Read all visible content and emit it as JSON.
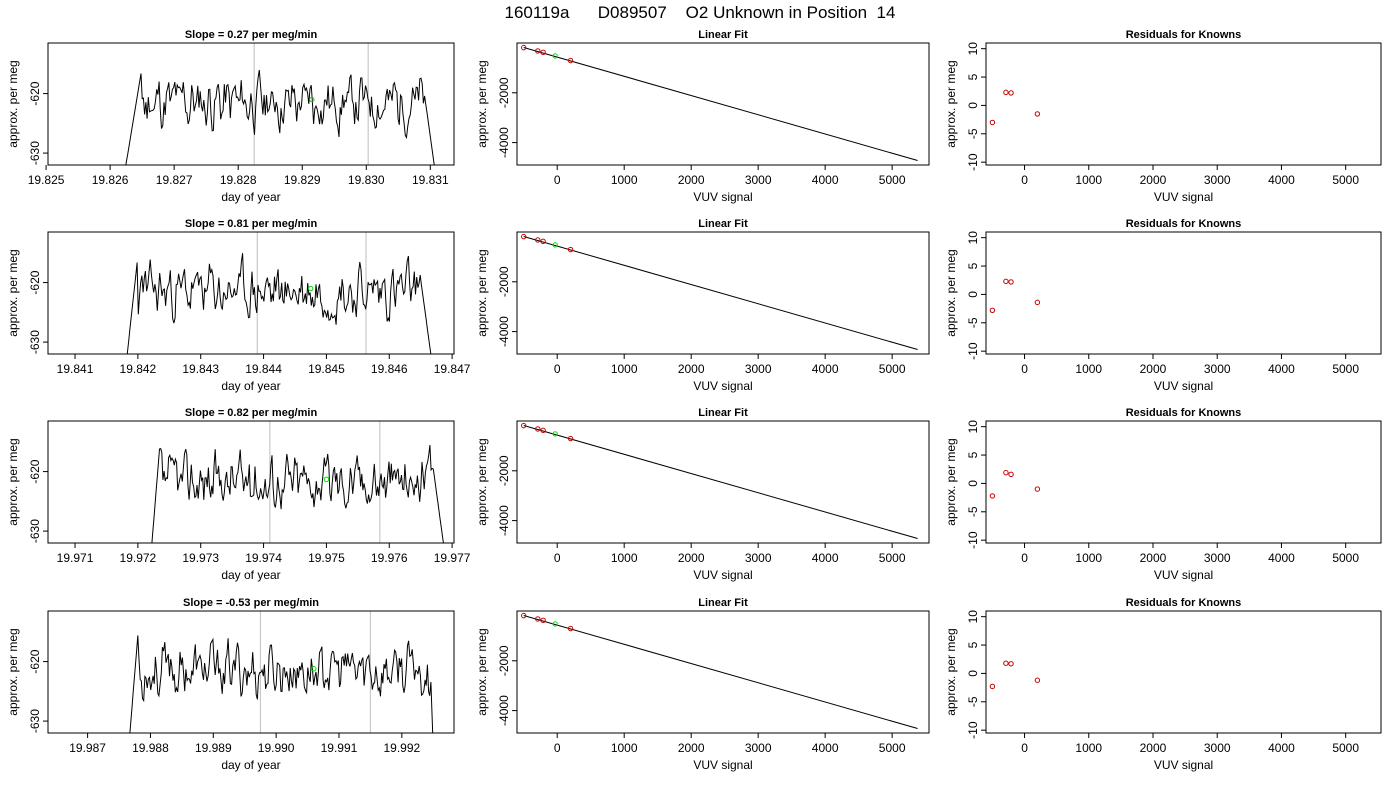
{
  "page_title": "160119a      D089507    O2 Unknown in Position  14",
  "colors": {
    "trace": "#000000",
    "vline": "#c8c8c8",
    "fit_line": "#000000",
    "known": "#cc0000",
    "unknown": "#00dd00"
  },
  "chart_data": [
    {
      "type": "line",
      "row": 1,
      "panel": "time-series",
      "title": "Slope =  0.27  per meg/min",
      "xlabel": "day of year",
      "ylabel": "approx. per meg",
      "xlim": [
        19.82503,
        19.83137
      ],
      "ylim": [
        -632,
        -611.5
      ],
      "xticks": [
        "19.825",
        "19.826",
        "19.827",
        "19.828",
        "19.829",
        "19.830",
        "19.831"
      ],
      "xtick_values": [
        19.825,
        19.826,
        19.827,
        19.828,
        19.829,
        19.83,
        19.831
      ],
      "yticks": [
        -620,
        -630
      ],
      "vlines": [
        19.82825,
        19.83003
      ],
      "unknown_point": [
        19.82915,
        -621
      ],
      "trace": {
        "x_start": 19.8262,
        "x_end": 19.8311,
        "seed": 11,
        "plateau_start": 19.8265,
        "plateau_end": 19.8309,
        "baseline": -621.5
      }
    },
    {
      "type": "scatter",
      "row": 1,
      "panel": "linear-fit",
      "title": "Linear Fit",
      "xlabel": "VUV signal",
      "ylabel": "approx. per meg",
      "xlim": [
        -600,
        5550
      ],
      "ylim": [
        -4900,
        0
      ],
      "xticks": [
        0,
        1000,
        2000,
        3000,
        4000,
        5000
      ],
      "yticks": [
        -2000,
        -4000
      ],
      "known": [
        [
          -500,
          -186
        ],
        [
          -290,
          -320
        ],
        [
          -210,
          -375
        ],
        [
          200,
          -705
        ]
      ],
      "unknown": [
        [
          -30,
          -518
        ]
      ],
      "line": [
        [
          -500,
          -180
        ],
        [
          5380,
          -4720
        ]
      ]
    },
    {
      "type": "scatter",
      "row": 1,
      "panel": "residuals",
      "title": "Residuals for Knowns",
      "xlabel": "VUV signal",
      "ylabel": "approx. per meg",
      "xlim": [
        -600,
        5550
      ],
      "ylim": [
        -10.5,
        11
      ],
      "xticks": [
        0,
        1000,
        2000,
        3000,
        4000,
        5000
      ],
      "yticks": [
        10,
        5,
        0,
        -5,
        -10
      ],
      "known": [
        [
          -500,
          -3.0
        ],
        [
          -290,
          2.3
        ],
        [
          -210,
          2.2
        ],
        [
          200,
          -1.5
        ]
      ]
    },
    {
      "type": "line",
      "row": 2,
      "panel": "time-series",
      "title": "Slope =  0.81  per meg/min",
      "xlabel": "day of year",
      "ylabel": "approx. per meg",
      "xlim": [
        19.84057,
        19.84703
      ],
      "ylim": [
        -632,
        -611.5
      ],
      "xticks": [
        "19.841",
        "19.842",
        "19.843",
        "19.844",
        "19.845",
        "19.846",
        "19.847"
      ],
      "xtick_values": [
        19.841,
        19.842,
        19.843,
        19.844,
        19.845,
        19.846,
        19.847
      ],
      "yticks": [
        -620,
        -630
      ],
      "vlines": [
        19.8439,
        19.84563
      ],
      "unknown_point": [
        19.84475,
        -621
      ],
      "trace": {
        "x_start": 19.8418,
        "x_end": 19.8467,
        "seed": 23,
        "plateau_start": 19.842,
        "plateau_end": 19.8465,
        "baseline": -621.5
      }
    },
    {
      "type": "scatter",
      "row": 2,
      "panel": "linear-fit",
      "title": "Linear Fit",
      "xlabel": "VUV signal",
      "ylabel": "approx. per meg",
      "xlim": [
        -600,
        5550
      ],
      "ylim": [
        -4900,
        0
      ],
      "xticks": [
        0,
        1000,
        2000,
        3000,
        4000,
        5000
      ],
      "yticks": [
        -2000,
        -4000
      ],
      "known": [
        [
          -500,
          -186
        ],
        [
          -290,
          -320
        ],
        [
          -210,
          -375
        ],
        [
          200,
          -705
        ]
      ],
      "unknown": [
        [
          -30,
          -518
        ]
      ],
      "line": [
        [
          -500,
          -180
        ],
        [
          5380,
          -4720
        ]
      ]
    },
    {
      "type": "scatter",
      "row": 2,
      "panel": "residuals",
      "title": "Residuals for Knowns",
      "xlabel": "VUV signal",
      "ylabel": "approx. per meg",
      "xlim": [
        -600,
        5550
      ],
      "ylim": [
        -10.5,
        11
      ],
      "xticks": [
        0,
        1000,
        2000,
        3000,
        4000,
        5000
      ],
      "yticks": [
        10,
        5,
        0,
        -5,
        -10
      ],
      "known": [
        [
          -500,
          -2.8
        ],
        [
          -290,
          2.3
        ],
        [
          -210,
          2.2
        ],
        [
          200,
          -1.4
        ]
      ]
    },
    {
      "type": "line",
      "row": 3,
      "panel": "time-series",
      "title": "Slope =  0.82  per meg/min",
      "xlabel": "day of year",
      "ylabel": "approx. per meg",
      "xlim": [
        19.97057,
        19.97703
      ],
      "ylim": [
        -632,
        -611.5
      ],
      "xticks": [
        "19.971",
        "19.972",
        "19.973",
        "19.974",
        "19.975",
        "19.976",
        "19.977"
      ],
      "xtick_values": [
        19.971,
        19.972,
        19.973,
        19.974,
        19.975,
        19.976,
        19.977
      ],
      "yticks": [
        -620,
        -630
      ],
      "vlines": [
        19.9741,
        19.97585
      ],
      "unknown_point": [
        19.975,
        -621.3
      ],
      "trace": {
        "x_start": 19.9722,
        "x_end": 19.9769,
        "seed": 37,
        "plateau_start": 19.97235,
        "plateau_end": 19.9767,
        "baseline": -621.5
      }
    },
    {
      "type": "scatter",
      "row": 3,
      "panel": "linear-fit",
      "title": "Linear Fit",
      "xlabel": "VUV signal",
      "ylabel": "approx. per meg",
      "xlim": [
        -600,
        5550
      ],
      "ylim": [
        -4900,
        0
      ],
      "xticks": [
        0,
        1000,
        2000,
        3000,
        4000,
        5000
      ],
      "yticks": [
        -2000,
        -4000
      ],
      "known": [
        [
          -500,
          -186
        ],
        [
          -290,
          -320
        ],
        [
          -210,
          -375
        ],
        [
          200,
          -705
        ]
      ],
      "unknown": [
        [
          -30,
          -518
        ]
      ],
      "line": [
        [
          -500,
          -180
        ],
        [
          5380,
          -4720
        ]
      ]
    },
    {
      "type": "scatter",
      "row": 3,
      "panel": "residuals",
      "title": "Residuals for Knowns",
      "xlabel": "VUV signal",
      "ylabel": "approx. per meg",
      "xlim": [
        -600,
        5550
      ],
      "ylim": [
        -10.5,
        11
      ],
      "xticks": [
        0,
        1000,
        2000,
        3000,
        4000,
        5000
      ],
      "yticks": [
        10,
        5,
        0,
        -5,
        -10
      ],
      "known": [
        [
          -500,
          -2.2
        ],
        [
          -290,
          1.9
        ],
        [
          -210,
          1.6
        ],
        [
          200,
          -1.0
        ]
      ]
    },
    {
      "type": "line",
      "row": 4,
      "panel": "time-series",
      "title": "Slope =  -0.53  per meg/min",
      "xlabel": "day of year",
      "ylabel": "approx. per meg",
      "xlim": [
        19.98637,
        19.99283
      ],
      "ylim": [
        -632,
        -611.5
      ],
      "xticks": [
        "19.987",
        "19.988",
        "19.989",
        "19.990",
        "19.991",
        "19.992"
      ],
      "xtick_values": [
        19.987,
        19.988,
        19.989,
        19.99,
        19.991,
        19.992
      ],
      "yticks": [
        -620,
        -630
      ],
      "vlines": [
        19.98975,
        19.9915
      ],
      "unknown_point": [
        19.9906,
        -621.2
      ],
      "trace": {
        "x_start": 19.98765,
        "x_end": 19.9925,
        "seed": 53,
        "plateau_start": 19.9878,
        "plateau_end": 19.99245,
        "baseline": -621.5
      }
    },
    {
      "type": "scatter",
      "row": 4,
      "panel": "linear-fit",
      "title": "Linear Fit",
      "xlabel": "VUV signal",
      "ylabel": "approx. per meg",
      "xlim": [
        -600,
        5550
      ],
      "ylim": [
        -4900,
        0
      ],
      "xticks": [
        0,
        1000,
        2000,
        3000,
        4000,
        5000
      ],
      "yticks": [
        -2000,
        -4000
      ],
      "known": [
        [
          -500,
          -186
        ],
        [
          -290,
          -320
        ],
        [
          -210,
          -375
        ],
        [
          200,
          -705
        ]
      ],
      "unknown": [
        [
          -30,
          -518
        ]
      ],
      "line": [
        [
          -500,
          -180
        ],
        [
          5380,
          -4720
        ]
      ]
    },
    {
      "type": "scatter",
      "row": 4,
      "panel": "residuals",
      "title": "Residuals for Knowns",
      "xlabel": "VUV signal",
      "ylabel": "approx. per meg",
      "xlim": [
        -600,
        5550
      ],
      "ylim": [
        -10.5,
        11
      ],
      "xticks": [
        0,
        1000,
        2000,
        3000,
        4000,
        5000
      ],
      "yticks": [
        10,
        5,
        0,
        -5,
        -10
      ],
      "known": [
        [
          -500,
          -2.3
        ],
        [
          -290,
          1.8
        ],
        [
          -210,
          1.7
        ],
        [
          200,
          -1.2
        ]
      ]
    }
  ]
}
